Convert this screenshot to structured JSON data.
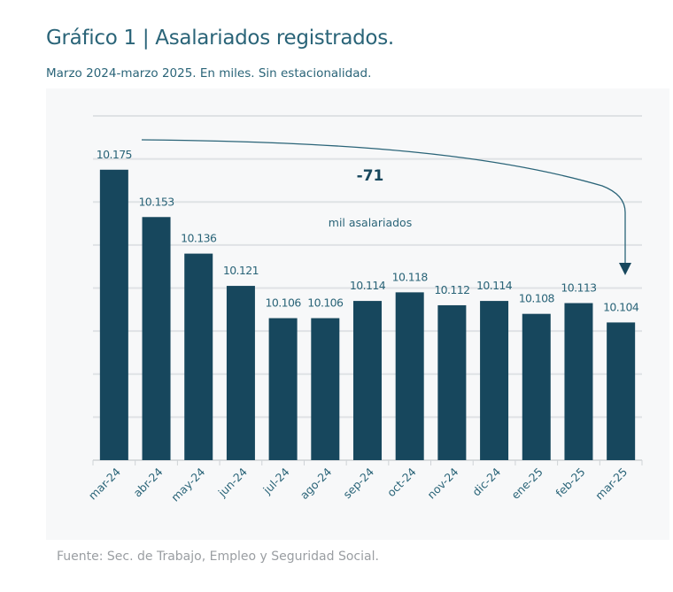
{
  "chart_data": {
    "type": "bar",
    "title": "Gráfico 1 | Asalariados registrados.",
    "subtitle": "Marzo 2024-marzo 2025. En miles. Sin estacionalidad.",
    "categories": [
      "mar-24",
      "abr-24",
      "may-24",
      "jun-24",
      "jul-24",
      "ago-24",
      "sep-24",
      "oct-24",
      "nov-24",
      "dic-24",
      "ene-25",
      "feb-25",
      "mar-25"
    ],
    "values": [
      10175,
      10153,
      10136,
      10121,
      10106,
      10106,
      10114,
      10118,
      10112,
      10114,
      10108,
      10113,
      10104
    ],
    "data_labels": [
      "10.175",
      "10.153",
      "10.136",
      "10.121",
      "10.106",
      "10.106",
      "10.114",
      "10.118",
      "10.112",
      "10.114",
      "10.108",
      "10.113",
      "10.104"
    ],
    "ylim": [
      10040,
      10200
    ],
    "ystep": 20,
    "grid": true,
    "xlabel": "",
    "ylabel": "",
    "annotation": {
      "value": "-71",
      "text": "mil asalariados"
    },
    "source": "Fuente: Sec. de Trabajo, Empleo y Seguridad Social.",
    "colors": {
      "bar": "#17475d",
      "title": "#2a6478",
      "grid": "#dfe2e5"
    }
  }
}
